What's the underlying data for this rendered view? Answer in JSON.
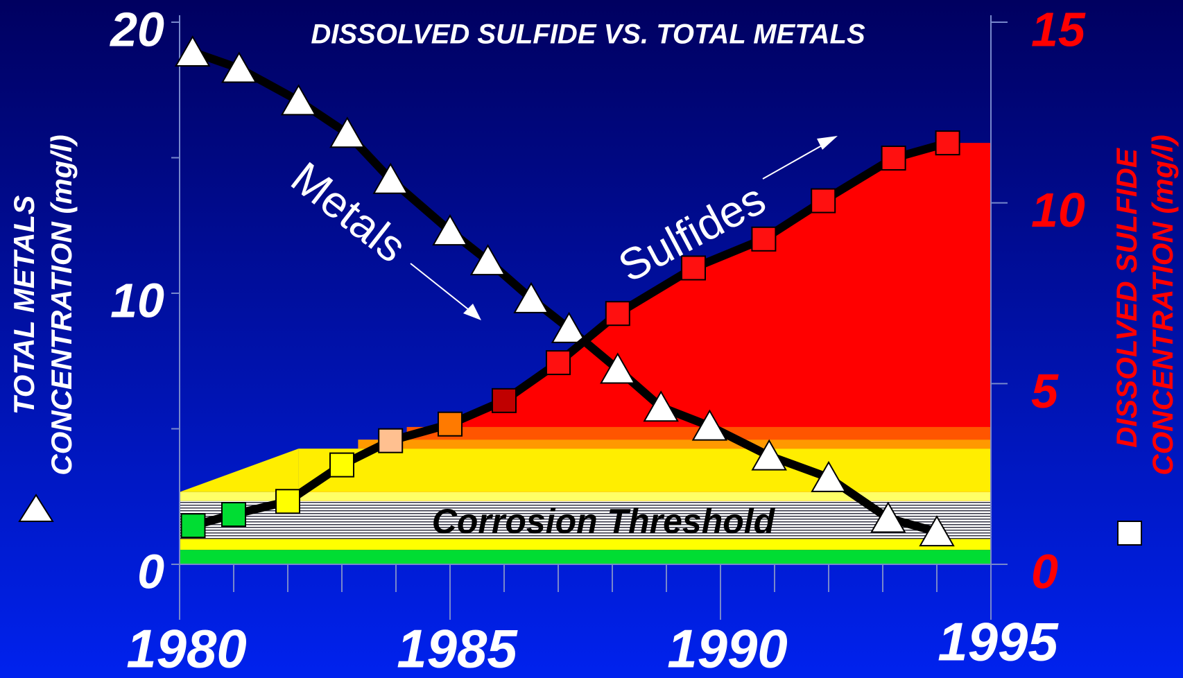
{
  "chart_data": {
    "type": "line",
    "title": "DISSOLVED SULFIDE VS. TOTAL METALS",
    "y_label": [
      "TOTAL METALS",
      "CONCENTRATION (mg/l)"
    ],
    "y2_label": [
      "DISSOLVED SULFIDE",
      "CONCENTRATION (mg/l)"
    ],
    "annotations": [
      "Metals",
      "Sulfides",
      "Corrosion Threshold"
    ],
    "xlim": [
      1980,
      1995
    ],
    "xticks": [
      1980,
      1985,
      1990,
      1995
    ],
    "xminorticks": [
      1981,
      1982,
      1983,
      1984,
      1986,
      1987,
      1988,
      1989,
      1991,
      1992,
      1993,
      1994
    ],
    "ylim": [
      0,
      20
    ],
    "yticks": [
      0,
      10,
      20
    ],
    "yminorticks": [
      5,
      15
    ],
    "y2lim": [
      0,
      15
    ],
    "y2ticks": [
      0,
      5,
      10,
      15
    ],
    "series": [
      {
        "name": "Metals",
        "color": "#ffffff",
        "axis": "y",
        "x": [
          1980.24,
          1981.1,
          1982.2,
          1983.1,
          1983.9,
          1985.0,
          1985.7,
          1986.5,
          1987.2,
          1988.1,
          1988.9,
          1989.8,
          1990.9,
          1992.0,
          1993.1,
          1994.0
        ],
        "values": [
          18.9,
          18.3,
          17.1,
          15.9,
          14.2,
          12.3,
          11.2,
          9.8,
          8.7,
          7.2,
          5.8,
          5.1,
          4.0,
          3.2,
          1.7,
          1.2
        ]
      },
      {
        "name": "Sulfides",
        "color": "#ff0000",
        "axis": "y2",
        "x": [
          1980.25,
          1981.0,
          1982.0,
          1983.0,
          1983.9,
          1985.0,
          1986.0,
          1987.0,
          1988.1,
          1989.5,
          1990.8,
          1991.9,
          1993.2,
          1994.2
        ],
        "values": [
          1.07,
          1.38,
          1.74,
          2.75,
          3.42,
          3.88,
          4.53,
          5.58,
          6.94,
          8.2,
          9.0,
          10.06,
          11.24,
          11.66
        ],
        "colors": [
          "#00dd33",
          "#00dd33",
          "#ffff00",
          "#ffff00",
          "#ffc090",
          "#ff7a00",
          "#c00000",
          "#ff1010",
          "#ff1010",
          "#ff1010",
          "#ff1010",
          "#ff1010",
          "#ff1010",
          "#ff1010"
        ]
      }
    ]
  }
}
